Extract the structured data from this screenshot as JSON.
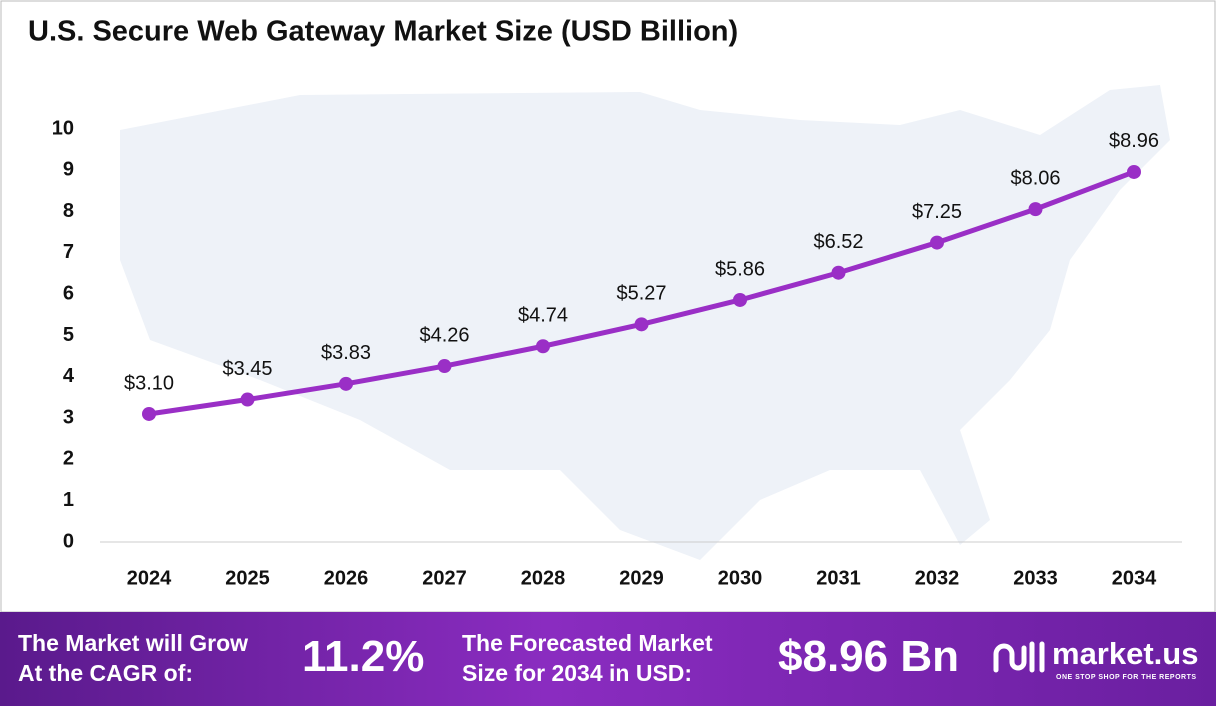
{
  "chart_data": {
    "type": "line",
    "title": "U.S. Secure Web Gateway Market Size (USD Billion)",
    "categories": [
      "2024",
      "2025",
      "2026",
      "2027",
      "2028",
      "2029",
      "2030",
      "2031",
      "2032",
      "2033",
      "2034"
    ],
    "values": [
      3.1,
      3.45,
      3.83,
      4.26,
      4.74,
      5.27,
      5.86,
      6.52,
      7.25,
      8.06,
      8.96
    ],
    "value_labels": [
      "$3.10",
      "$3.45",
      "$3.83",
      "$4.26",
      "$4.74",
      "$5.27",
      "$5.86",
      "$6.52",
      "$7.25",
      "$8.06",
      "$8.96"
    ],
    "color": "#9a2fc6",
    "ylim": [
      0,
      10
    ],
    "yticks": [
      0,
      1,
      2,
      3,
      4,
      5,
      6,
      7,
      8,
      9,
      10
    ]
  },
  "footer": {
    "cagr_text": [
      "The Market will Grow",
      "At the CAGR of:"
    ],
    "cagr": "11.2%",
    "forecast_text": [
      "The Forecasted Market",
      "Size for 2034 in USD:"
    ],
    "forecast": "$8.96 Bn",
    "brand": "market.us",
    "tagline": "ONE STOP SHOP FOR THE REPORTS"
  }
}
